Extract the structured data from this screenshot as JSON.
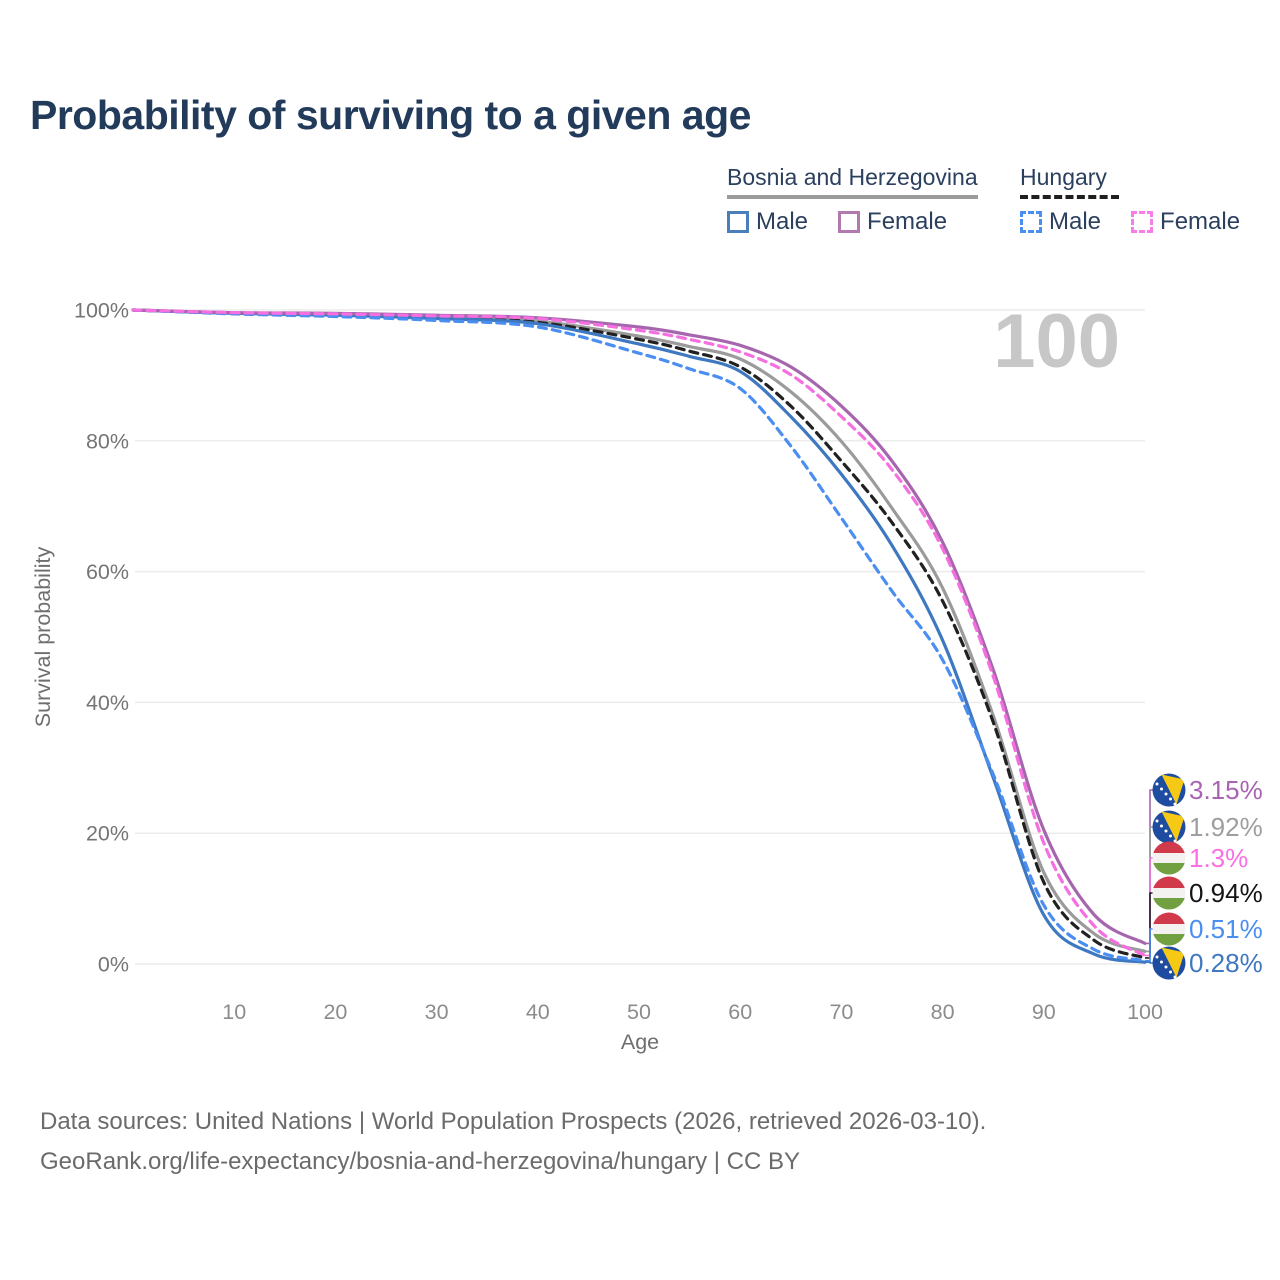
{
  "header": {
    "title": "Probability of surviving to a given age"
  },
  "legend": {
    "groups": [
      {
        "label": "Bosnia and Herzegovina",
        "line_style": "solid",
        "line_color": "#9b9b9b",
        "items": [
          {
            "label": "Male",
            "swatch_color": "#4a7ebb",
            "dashed": false
          },
          {
            "label": "Female",
            "swatch_color": "#b279ad",
            "dashed": false
          }
        ]
      },
      {
        "label": "Hungary",
        "line_style": "dashed",
        "line_color": "#1f1f1f",
        "items": [
          {
            "label": "Male",
            "swatch_color": "#4b8ef2",
            "dashed": true
          },
          {
            "label": "Female",
            "swatch_color": "#fa7ce9",
            "dashed": true
          }
        ]
      }
    ]
  },
  "chart_data": {
    "type": "line",
    "title": "Probability of surviving to a given age",
    "xlabel": "Age",
    "ylabel": "Survival probability",
    "xlim": [
      0,
      100
    ],
    "ylim": [
      0,
      100
    ],
    "grid": "horizontal",
    "watermark": "100",
    "x_ticks": [
      10,
      20,
      30,
      40,
      50,
      60,
      70,
      80,
      90,
      100
    ],
    "y_ticks": [
      {
        "value": 0,
        "label": "0%"
      },
      {
        "value": 20,
        "label": "20%"
      },
      {
        "value": 40,
        "label": "40%"
      },
      {
        "value": 60,
        "label": "60%"
      },
      {
        "value": 80,
        "label": "80%"
      },
      {
        "value": 100,
        "label": "100%"
      }
    ],
    "x": [
      0,
      10,
      20,
      30,
      40,
      50,
      55,
      60,
      65,
      70,
      75,
      80,
      85,
      90,
      95,
      100
    ],
    "series": [
      {
        "id": "bih-total",
        "name": "Bosnia and Herzegovina",
        "sex": "Both sexes",
        "color": "#9b9b9b",
        "dashed": false,
        "flag": "ba",
        "end_label": "1.92%",
        "end_label_color": "#9e9e9e",
        "values": [
          100,
          99.5,
          99.3,
          98.9,
          98.3,
          96.0,
          94.4,
          92.5,
          87.5,
          79.9,
          69.7,
          57.5,
          38.0,
          14.0,
          4.6,
          1.92
        ]
      },
      {
        "id": "hun-total",
        "name": "Hungary",
        "sex": "Both sexes",
        "color": "#212121",
        "dashed": true,
        "flag": "hu",
        "end_label": "0.94%",
        "end_label_color": "#141414",
        "values": [
          100,
          99.5,
          99.2,
          98.8,
          98.1,
          95.5,
          93.7,
          91.3,
          85.3,
          76.9,
          67.5,
          55.5,
          37.0,
          12.5,
          3.6,
          0.94
        ]
      },
      {
        "id": "bih-male",
        "name": "Bosnia and Herzegovina",
        "sex": "Male",
        "color": "#3e78c1",
        "dashed": false,
        "flag": "ba",
        "end_label": "0.28%",
        "end_label_color": "#4077c0",
        "values": [
          100,
          99.5,
          99.2,
          98.7,
          97.9,
          94.8,
          92.9,
          90.6,
          83.7,
          74.9,
          64.0,
          49.5,
          28.5,
          7.5,
          1.5,
          0.28
        ]
      },
      {
        "id": "hun-male",
        "name": "Hungary",
        "sex": "Male",
        "color": "#4b8ef2",
        "dashed": true,
        "flag": "hu",
        "end_label": "0.51%",
        "end_label_color": "#4b8ef2",
        "values": [
          100,
          99.4,
          99.0,
          98.4,
          97.4,
          93.4,
          91.0,
          88.0,
          79.2,
          68.2,
          57.0,
          46.5,
          29.0,
          9.0,
          2.2,
          0.51
        ]
      },
      {
        "id": "bih-female",
        "name": "Bosnia and Herzegovina",
        "sex": "Female",
        "color": "#a666ad",
        "dashed": false,
        "flag": "ba",
        "end_label": "3.15%",
        "end_label_color": "#a863b3",
        "values": [
          100,
          99.6,
          99.5,
          99.2,
          98.8,
          97.4,
          96.2,
          94.6,
          91.3,
          85.3,
          76.9,
          64.5,
          45.0,
          20.5,
          7.5,
          3.15
        ]
      },
      {
        "id": "hun-female",
        "name": "Hungary",
        "sex": "Female",
        "color": "#f56fe0",
        "dashed": true,
        "flag": "hu",
        "end_label": "1.3%",
        "end_label_color": "#fb6ee4",
        "values": [
          100,
          99.6,
          99.4,
          99.1,
          98.7,
          96.9,
          95.5,
          93.6,
          90.1,
          83.7,
          75.6,
          63.5,
          44.0,
          18.5,
          5.8,
          1.3
        ]
      }
    ],
    "flags": {
      "ba": {
        "blue": "#1e4ca1",
        "yellow": "#f6c915",
        "star": "#ffffff"
      },
      "hu": {
        "red": "#d13a4b",
        "white": "#f4f2f0",
        "green": "#70a040"
      }
    },
    "styles": {
      "grid_color": "#ececec",
      "y_tick_color": "#757575",
      "x_tick_color": "#8c8c8c",
      "axis_label_color": "#6e6e6e",
      "watermark_color": "#c7c7c7"
    }
  },
  "footer": {
    "line1": "Data sources: United Nations | World Population Prospects (2026, retrieved 2026-03-10).",
    "line2": "GeoRank.org/life-expectancy/bosnia-and-herzegovina/hungary | CC BY"
  }
}
